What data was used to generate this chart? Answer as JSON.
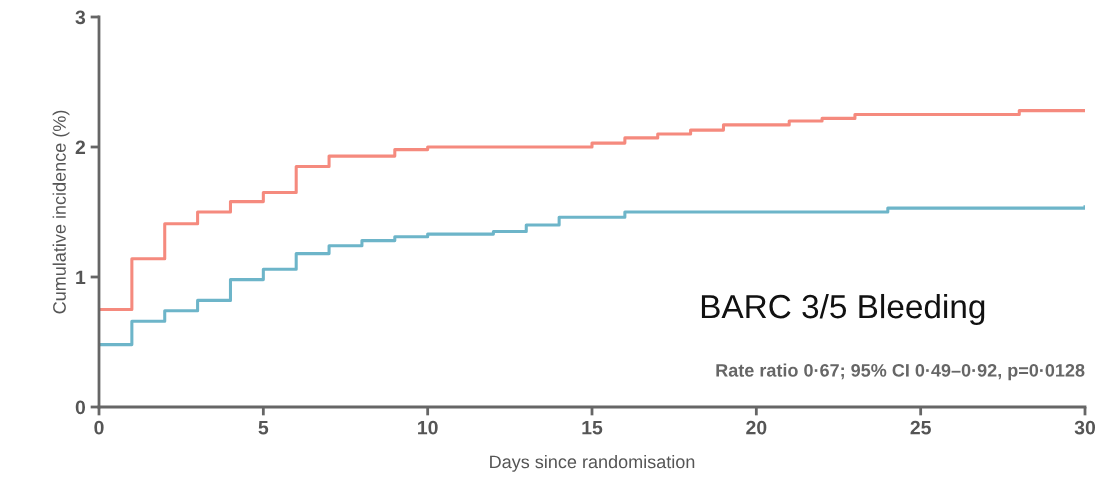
{
  "chart_data": {
    "type": "step",
    "xlabel": "Days since randomisation",
    "ylabel": "Cumulative incidence (%)",
    "xlim": [
      0,
      30
    ],
    "ylim": [
      0,
      3
    ],
    "xticks": [
      0,
      5,
      10,
      15,
      20,
      25,
      30
    ],
    "yticks": [
      0,
      1,
      2,
      3
    ],
    "grid": false,
    "legend": false,
    "marker": "none",
    "line_style": "solid",
    "series": [
      {
        "color": "#f58a7e",
        "x": [
          0,
          1,
          2,
          3,
          4,
          5,
          6,
          7,
          9,
          10,
          15,
          16,
          17,
          18,
          19,
          21,
          22,
          23,
          28,
          30
        ],
        "values": [
          0.75,
          1.14,
          1.41,
          1.5,
          1.58,
          1.65,
          1.85,
          1.93,
          1.98,
          2.0,
          2.03,
          2.07,
          2.1,
          2.13,
          2.17,
          2.2,
          2.22,
          2.25,
          2.28,
          2.28
        ]
      },
      {
        "color": "#6db5c9",
        "x": [
          0,
          1,
          2,
          3,
          4,
          5,
          6,
          7,
          8,
          9,
          10,
          12,
          13,
          14,
          16,
          24,
          30
        ],
        "values": [
          0.48,
          0.66,
          0.74,
          0.82,
          0.98,
          1.06,
          1.18,
          1.24,
          1.28,
          1.31,
          1.33,
          1.35,
          1.4,
          1.46,
          1.5,
          1.53,
          1.54
        ]
      }
    ],
    "annotations": [
      "BARC 3/5 Bleeding",
      "Rate ratio 0·67; 95% CI 0·49–0·92, p=0·0128"
    ]
  }
}
